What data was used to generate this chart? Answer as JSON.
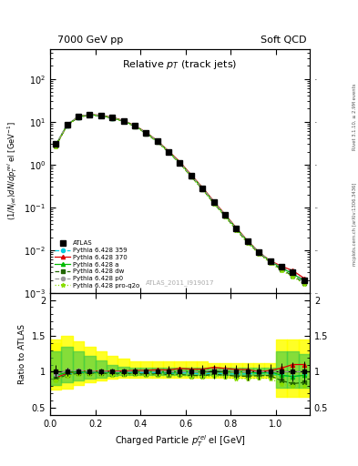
{
  "title_left": "7000 GeV pp",
  "title_right": "Soft QCD",
  "plot_title": "Relative $p_T$ (track jets)",
  "xlabel": "Charged Particle $p^{rel}_{T}$ el [GeV]",
  "ylabel_main": "$(1/N_{jet})dN/dp^{rel}_{T}$ el [GeV$^{-1}$]",
  "ylabel_ratio": "Ratio to ATLAS",
  "right_label1": "Rivet 3.1.10, ≥ 2.9M events",
  "right_label2": "mcplots.cern.ch [arXiv:1306.3436]",
  "watermark": "ATLAS_2011_I919017",
  "x_data": [
    0.025,
    0.075,
    0.125,
    0.175,
    0.225,
    0.275,
    0.325,
    0.375,
    0.425,
    0.475,
    0.525,
    0.575,
    0.625,
    0.675,
    0.725,
    0.775,
    0.825,
    0.875,
    0.925,
    0.975,
    1.025,
    1.075,
    1.125
  ],
  "atlas_y": [
    3.0,
    8.5,
    13.0,
    14.5,
    14.0,
    12.5,
    10.5,
    8.0,
    5.5,
    3.5,
    2.0,
    1.1,
    0.55,
    0.28,
    0.13,
    0.065,
    0.032,
    0.016,
    0.009,
    0.0055,
    0.004,
    0.003,
    0.002
  ],
  "atlas_yerr": [
    0.3,
    0.5,
    0.6,
    0.6,
    0.6,
    0.5,
    0.5,
    0.4,
    0.3,
    0.2,
    0.15,
    0.08,
    0.04,
    0.025,
    0.012,
    0.006,
    0.003,
    0.002,
    0.001,
    0.0006,
    0.0005,
    0.0004,
    0.0003
  ],
  "py359_y": [
    2.8,
    8.2,
    12.8,
    14.3,
    13.8,
    12.2,
    10.3,
    7.9,
    5.4,
    3.45,
    1.95,
    1.08,
    0.54,
    0.27,
    0.128,
    0.063,
    0.031,
    0.0155,
    0.0088,
    0.0054,
    0.0038,
    0.0028,
    0.0019
  ],
  "py370_y": [
    2.75,
    8.3,
    13.1,
    14.6,
    14.1,
    12.6,
    10.6,
    8.15,
    5.6,
    3.6,
    2.05,
    1.15,
    0.57,
    0.29,
    0.138,
    0.068,
    0.033,
    0.0165,
    0.009,
    0.0056,
    0.0042,
    0.0033,
    0.0022
  ],
  "pya_y": [
    2.85,
    8.4,
    13.0,
    14.5,
    13.9,
    12.4,
    10.4,
    8.0,
    5.5,
    3.5,
    1.98,
    1.1,
    0.55,
    0.28,
    0.132,
    0.065,
    0.032,
    0.016,
    0.0088,
    0.0055,
    0.0038,
    0.0028,
    0.0019
  ],
  "pydw_y": [
    2.7,
    8.1,
    12.7,
    14.2,
    13.7,
    12.1,
    10.2,
    7.8,
    5.3,
    3.4,
    1.92,
    1.06,
    0.52,
    0.265,
    0.125,
    0.062,
    0.03,
    0.015,
    0.0085,
    0.0052,
    0.0035,
    0.0025,
    0.0017
  ],
  "pyp0_y": [
    2.9,
    8.6,
    13.2,
    14.6,
    14.1,
    12.5,
    10.5,
    8.05,
    5.5,
    3.52,
    2.0,
    1.1,
    0.55,
    0.28,
    0.133,
    0.066,
    0.032,
    0.016,
    0.009,
    0.0055,
    0.004,
    0.003,
    0.002
  ],
  "pyproq2o_y": [
    2.65,
    8.0,
    12.6,
    14.1,
    13.6,
    12.0,
    10.1,
    7.7,
    5.25,
    3.35,
    1.9,
    1.05,
    0.51,
    0.26,
    0.122,
    0.06,
    0.029,
    0.0145,
    0.0082,
    0.005,
    0.0033,
    0.0024,
    0.0016
  ],
  "color_atlas": "#000000",
  "color_py359": "#00ccdd",
  "color_py370": "#dd0000",
  "color_pya": "#00bb00",
  "color_pydw": "#226600",
  "color_pyp0": "#999999",
  "color_pyproq2o": "#88dd00",
  "color_band_yellow": "#ffff00",
  "color_band_green": "#44cc44",
  "xlim": [
    0.0,
    1.15
  ],
  "ylim_main": [
    0.001,
    500.0
  ],
  "ylim_ratio": [
    0.4,
    2.1
  ],
  "ratio_yticks": [
    0.5,
    1.0,
    1.5,
    2.0
  ],
  "ratio_yticklabels": [
    "0.5",
    "1",
    "1.5",
    "2"
  ]
}
